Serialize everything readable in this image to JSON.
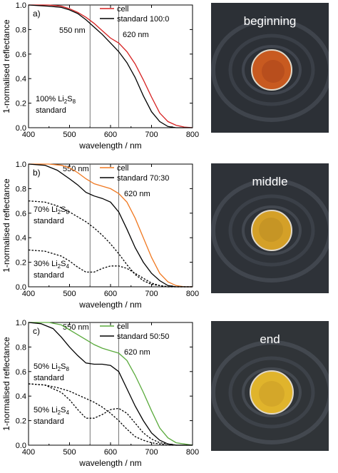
{
  "chart_data": [
    {
      "type": "line",
      "panel_label": "a)",
      "xlabel": "wavelength / nm",
      "ylabel": "1-normalised reflectance",
      "xlim": [
        400,
        800
      ],
      "ylim": [
        0,
        1.0
      ],
      "xticks": [
        "400",
        "500",
        "600",
        "700",
        "800"
      ],
      "yticks": [
        "0.0",
        "0.2",
        "0.4",
        "0.6",
        "0.8",
        "1.0"
      ],
      "vlines": [
        {
          "x": 550,
          "label": "550 nm"
        },
        {
          "x": 620,
          "label": "620 nm"
        }
      ],
      "legend": [
        {
          "name": "cell",
          "color": "#d62020"
        },
        {
          "name": "standard 100:0",
          "color": "#000000"
        }
      ],
      "annotations": [
        {
          "line1": "100% Li",
          "sub": "2",
          "mid": "S",
          "sub2": "8",
          "line2": "standard"
        }
      ],
      "series": [
        {
          "name": "cell",
          "color": "#d62020",
          "dash": false,
          "x": [
            400,
            450,
            480,
            500,
            520,
            540,
            560,
            580,
            600,
            620,
            640,
            660,
            680,
            700,
            720,
            740,
            760,
            780,
            800
          ],
          "y": [
            1.0,
            1.0,
            0.99,
            0.97,
            0.94,
            0.9,
            0.85,
            0.79,
            0.73,
            0.69,
            0.62,
            0.52,
            0.39,
            0.25,
            0.12,
            0.05,
            0.02,
            0.005,
            0.0
          ]
        },
        {
          "name": "standard 100:0",
          "color": "#000000",
          "dash": false,
          "x": [
            400,
            450,
            480,
            500,
            520,
            540,
            560,
            580,
            600,
            620,
            640,
            660,
            680,
            700,
            720,
            740,
            760,
            780,
            800
          ],
          "y": [
            1.0,
            0.99,
            0.98,
            0.96,
            0.93,
            0.88,
            0.82,
            0.76,
            0.69,
            0.62,
            0.53,
            0.41,
            0.26,
            0.13,
            0.05,
            0.01,
            0.0,
            0.0,
            0.0
          ]
        }
      ]
    },
    {
      "type": "line",
      "panel_label": "b)",
      "xlabel": "wavelength / nm",
      "ylabel": "1-normalised reflectance",
      "xlim": [
        400,
        800
      ],
      "ylim": [
        0,
        1.0
      ],
      "xticks": [
        "400",
        "500",
        "600",
        "700",
        "800"
      ],
      "yticks": [
        "0.0",
        "0.2",
        "0.4",
        "0.6",
        "0.8",
        "1.0"
      ],
      "vlines": [
        {
          "x": 550,
          "label": "550 nm"
        },
        {
          "x": 620,
          "label": "620 nm"
        }
      ],
      "legend": [
        {
          "name": "cell",
          "color": "#f07820"
        },
        {
          "name": "standard 70:30",
          "color": "#000000"
        }
      ],
      "annotations": [
        {
          "line1": "70% Li",
          "sub": "2",
          "mid": "S",
          "sub2": "8",
          "line2": "standard"
        },
        {
          "line1": "30% Li",
          "sub": "2",
          "mid": "S",
          "sub2": "4",
          "line2": "standard"
        }
      ],
      "series": [
        {
          "name": "cell",
          "color": "#f07820",
          "dash": false,
          "x": [
            400,
            450,
            480,
            500,
            520,
            540,
            560,
            580,
            600,
            620,
            640,
            660,
            680,
            700,
            720,
            740,
            760,
            780,
            800
          ],
          "y": [
            1.0,
            1.0,
            0.99,
            0.97,
            0.93,
            0.88,
            0.84,
            0.82,
            0.8,
            0.76,
            0.69,
            0.56,
            0.4,
            0.24,
            0.11,
            0.04,
            0.01,
            0.0,
            0.0
          ]
        },
        {
          "name": "standard 70:30",
          "color": "#000000",
          "dash": false,
          "x": [
            400,
            440,
            470,
            500,
            520,
            540,
            560,
            580,
            600,
            620,
            640,
            660,
            680,
            700,
            720,
            740,
            760,
            780,
            800
          ],
          "y": [
            1.0,
            0.99,
            0.95,
            0.88,
            0.83,
            0.77,
            0.74,
            0.72,
            0.69,
            0.61,
            0.47,
            0.32,
            0.2,
            0.11,
            0.05,
            0.01,
            0.0,
            0.0,
            0.0
          ]
        },
        {
          "name": "70% Li2S8",
          "color": "#000000",
          "dash": true,
          "x": [
            400,
            440,
            470,
            500,
            520,
            540,
            560,
            580,
            600,
            620,
            640,
            660,
            680,
            700,
            720,
            740,
            760,
            780,
            800
          ],
          "y": [
            0.7,
            0.69,
            0.66,
            0.61,
            0.57,
            0.53,
            0.48,
            0.42,
            0.35,
            0.27,
            0.18,
            0.1,
            0.05,
            0.02,
            0.01,
            0.0,
            0.0,
            0.0,
            0.0
          ]
        },
        {
          "name": "30% Li2S4",
          "color": "#000000",
          "dash": true,
          "x": [
            400,
            440,
            480,
            500,
            520,
            540,
            560,
            580,
            600,
            620,
            640,
            660,
            680,
            700,
            720,
            740,
            760,
            780,
            800
          ],
          "y": [
            0.3,
            0.29,
            0.25,
            0.21,
            0.16,
            0.12,
            0.12,
            0.15,
            0.17,
            0.17,
            0.15,
            0.11,
            0.07,
            0.03,
            0.01,
            0.0,
            0.0,
            0.0,
            0.0
          ]
        }
      ]
    },
    {
      "type": "line",
      "panel_label": "c)",
      "xlabel": "wavelength / nm",
      "ylabel": "1-normalised reflectance",
      "xlim": [
        400,
        800
      ],
      "ylim": [
        0,
        1.0
      ],
      "xticks": [
        "400",
        "500",
        "600",
        "700",
        "800"
      ],
      "yticks": [
        "0.0",
        "0.2",
        "0.4",
        "0.6",
        "0.8",
        "1.0"
      ],
      "vlines": [
        {
          "x": 550,
          "label": "550 nm"
        },
        {
          "x": 620,
          "label": "620 nm"
        }
      ],
      "legend": [
        {
          "name": "cell",
          "color": "#5aaa3c"
        },
        {
          "name": "standard 50:50",
          "color": "#000000"
        }
      ],
      "annotations": [
        {
          "line1": "50% Li",
          "sub": "2",
          "mid": "S",
          "sub2": "8",
          "line2": "standard"
        },
        {
          "line1": "50% Li",
          "sub": "2",
          "mid": "S",
          "sub2": "4",
          "line2": "standard"
        }
      ],
      "series": [
        {
          "name": "cell",
          "color": "#5aaa3c",
          "dash": false,
          "x": [
            400,
            450,
            480,
            500,
            520,
            540,
            560,
            580,
            600,
            620,
            640,
            660,
            680,
            700,
            720,
            740,
            760,
            780,
            800
          ],
          "y": [
            1.0,
            1.0,
            0.98,
            0.94,
            0.9,
            0.86,
            0.82,
            0.79,
            0.77,
            0.75,
            0.69,
            0.57,
            0.43,
            0.28,
            0.14,
            0.06,
            0.02,
            0.01,
            0.0
          ]
        },
        {
          "name": "standard 50:50",
          "color": "#000000",
          "dash": false,
          "x": [
            400,
            430,
            460,
            480,
            500,
            520,
            540,
            560,
            580,
            600,
            620,
            640,
            660,
            680,
            700,
            720,
            740,
            760,
            800
          ],
          "y": [
            1.0,
            0.99,
            0.95,
            0.88,
            0.8,
            0.73,
            0.67,
            0.66,
            0.66,
            0.65,
            0.6,
            0.46,
            0.32,
            0.2,
            0.1,
            0.04,
            0.01,
            0.0,
            0.0
          ]
        },
        {
          "name": "50% Li2S8",
          "color": "#000000",
          "dash": true,
          "x": [
            400,
            440,
            470,
            500,
            520,
            540,
            560,
            580,
            600,
            620,
            640,
            660,
            680,
            700,
            720,
            740,
            760,
            780,
            800
          ],
          "y": [
            0.5,
            0.49,
            0.47,
            0.44,
            0.41,
            0.38,
            0.35,
            0.31,
            0.26,
            0.2,
            0.13,
            0.07,
            0.04,
            0.02,
            0.01,
            0.0,
            0.0,
            0.0,
            0.0
          ]
        },
        {
          "name": "50% Li2S4",
          "color": "#000000",
          "dash": true,
          "x": [
            400,
            440,
            480,
            500,
            520,
            540,
            560,
            580,
            600,
            620,
            640,
            660,
            680,
            700,
            720,
            740,
            760,
            780,
            800
          ],
          "y": [
            0.5,
            0.49,
            0.43,
            0.37,
            0.29,
            0.22,
            0.22,
            0.25,
            0.29,
            0.3,
            0.26,
            0.18,
            0.1,
            0.05,
            0.02,
            0.01,
            0.0,
            0.0,
            0.0
          ]
        }
      ]
    }
  ],
  "photos": [
    {
      "label": "beginning",
      "spot_color": "#c85a20",
      "spot_inner": "#a8421a"
    },
    {
      "label": "middle",
      "spot_color": "#d4a028",
      "spot_inner": "#b88a22"
    },
    {
      "label": "end",
      "spot_color": "#e0b42c",
      "spot_inner": "#c89a26"
    }
  ]
}
